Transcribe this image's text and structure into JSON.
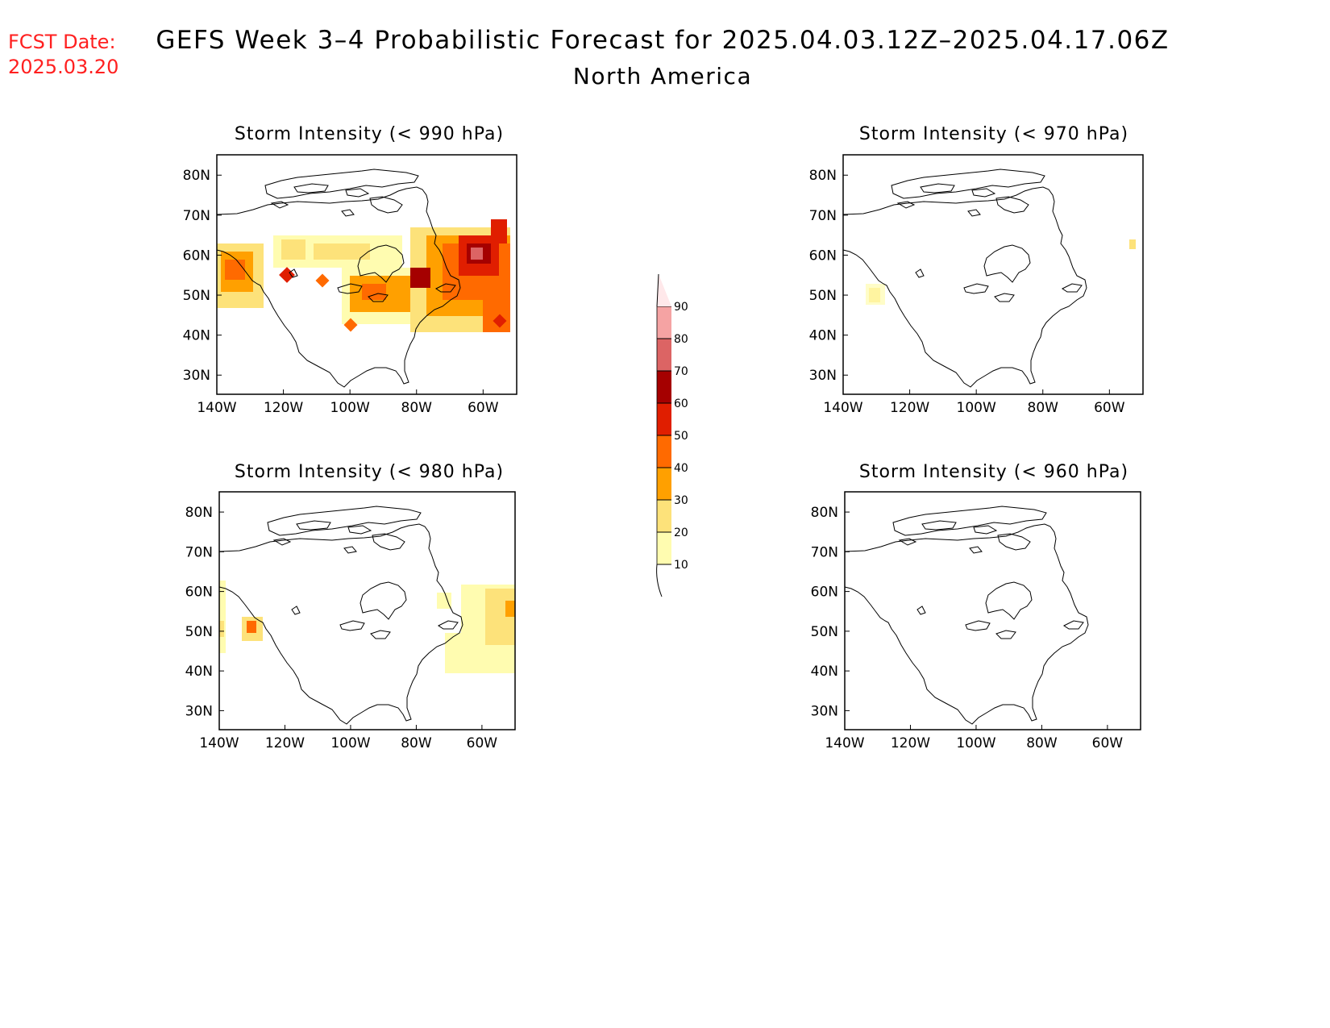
{
  "header": {
    "fcst_label": "FCST Date:",
    "fcst_date": "2025.03.20",
    "title": "GEFS Week 3–4 Probabilistic Forecast for 2025.04.03.12Z–2025.04.17.06Z",
    "region": "North America",
    "fcst_color": "#ff2020"
  },
  "panels": [
    {
      "id": "p990",
      "title": "Storm Intensity (< 990 hPa)"
    },
    {
      "id": "p970",
      "title": "Storm Intensity (< 970 hPa)"
    },
    {
      "id": "p980",
      "title": "Storm Intensity (< 980 hPa)"
    },
    {
      "id": "p960",
      "title": "Storm Intensity (< 960 hPa)"
    }
  ],
  "axes": {
    "lon_ticks": [
      "140W",
      "120W",
      "100W",
      "80W",
      "60W"
    ],
    "lat_ticks": [
      "80N",
      "70N",
      "60N",
      "50N",
      "40N",
      "30N"
    ]
  },
  "colorbar": {
    "levels": [
      "10",
      "20",
      "30",
      "40",
      "50",
      "60",
      "70",
      "80",
      "90"
    ],
    "colors": [
      "#fffcb0",
      "#fde27a",
      "#ffa000",
      "#ff6a00",
      "#e01e00",
      "#a50000",
      "#dc6464",
      "#f5a3a3",
      "#ffe8ea"
    ]
  }
}
